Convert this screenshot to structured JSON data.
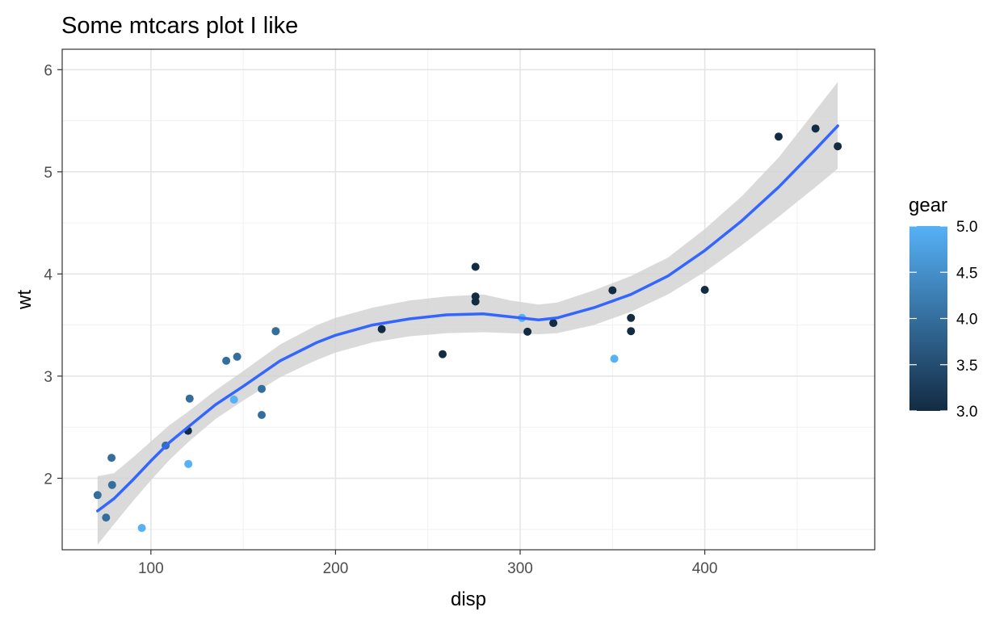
{
  "chart_data": {
    "type": "scatter",
    "title": "Some mtcars plot I like",
    "xlabel": "disp",
    "ylabel": "wt",
    "xlim": [
      51.95,
      492.05
    ],
    "ylim": [
      1.3,
      6.2
    ],
    "x_ticks": [
      100,
      200,
      300,
      400
    ],
    "y_ticks": [
      2,
      3,
      4,
      5,
      6
    ],
    "grid": true,
    "colors": {
      "low": "#132B43",
      "high": "#56B1F7",
      "smooth_line": "#3366FF",
      "ribbon": "#d3d3d3"
    },
    "legend": {
      "title": "gear",
      "position": "right",
      "range": [
        3,
        5
      ],
      "labels": [
        "5.0",
        "4.5",
        "4.0",
        "3.5",
        "3.0"
      ],
      "label_values": [
        5,
        4.5,
        4,
        3.5,
        3
      ]
    },
    "points": [
      {
        "x": 160,
        "y": 2.62,
        "gear": 4
      },
      {
        "x": 160,
        "y": 2.875,
        "gear": 4
      },
      {
        "x": 108,
        "y": 2.32,
        "gear": 4
      },
      {
        "x": 258,
        "y": 3.215,
        "gear": 3
      },
      {
        "x": 360,
        "y": 3.44,
        "gear": 3
      },
      {
        "x": 225,
        "y": 3.46,
        "gear": 3
      },
      {
        "x": 360,
        "y": 3.57,
        "gear": 3
      },
      {
        "x": 146.7,
        "y": 3.19,
        "gear": 4
      },
      {
        "x": 140.8,
        "y": 3.15,
        "gear": 4
      },
      {
        "x": 167.6,
        "y": 3.44,
        "gear": 4
      },
      {
        "x": 167.6,
        "y": 3.44,
        "gear": 4
      },
      {
        "x": 275.8,
        "y": 4.07,
        "gear": 3
      },
      {
        "x": 275.8,
        "y": 3.73,
        "gear": 3
      },
      {
        "x": 275.8,
        "y": 3.78,
        "gear": 3
      },
      {
        "x": 472,
        "y": 5.25,
        "gear": 3
      },
      {
        "x": 460,
        "y": 5.424,
        "gear": 3
      },
      {
        "x": 440,
        "y": 5.345,
        "gear": 3
      },
      {
        "x": 78.7,
        "y": 2.2,
        "gear": 4
      },
      {
        "x": 75.7,
        "y": 1.615,
        "gear": 4
      },
      {
        "x": 71.1,
        "y": 1.835,
        "gear": 4
      },
      {
        "x": 120.1,
        "y": 2.465,
        "gear": 3
      },
      {
        "x": 318,
        "y": 3.52,
        "gear": 3
      },
      {
        "x": 304,
        "y": 3.435,
        "gear": 3
      },
      {
        "x": 350,
        "y": 3.84,
        "gear": 3
      },
      {
        "x": 400,
        "y": 3.845,
        "gear": 3
      },
      {
        "x": 79,
        "y": 1.935,
        "gear": 4
      },
      {
        "x": 120.3,
        "y": 2.14,
        "gear": 5
      },
      {
        "x": 95.1,
        "y": 1.513,
        "gear": 5
      },
      {
        "x": 351,
        "y": 3.17,
        "gear": 5
      },
      {
        "x": 145,
        "y": 2.77,
        "gear": 5
      },
      {
        "x": 301,
        "y": 3.57,
        "gear": 5
      },
      {
        "x": 121,
        "y": 2.78,
        "gear": 4
      }
    ],
    "smooth": [
      {
        "x": 71.1,
        "y": 1.68,
        "lo": 1.35,
        "hi": 2.02
      },
      {
        "x": 80,
        "y": 1.8,
        "lo": 1.55,
        "hi": 2.05
      },
      {
        "x": 90,
        "y": 1.98,
        "lo": 1.77,
        "hi": 2.2
      },
      {
        "x": 100,
        "y": 2.17,
        "lo": 1.98,
        "hi": 2.36
      },
      {
        "x": 110,
        "y": 2.35,
        "lo": 2.18,
        "hi": 2.52
      },
      {
        "x": 120,
        "y": 2.5,
        "lo": 2.35,
        "hi": 2.65
      },
      {
        "x": 135,
        "y": 2.72,
        "lo": 2.58,
        "hi": 2.86
      },
      {
        "x": 150,
        "y": 2.9,
        "lo": 2.76,
        "hi": 3.05
      },
      {
        "x": 170,
        "y": 3.15,
        "lo": 2.99,
        "hi": 3.31
      },
      {
        "x": 190,
        "y": 3.33,
        "lo": 3.16,
        "hi": 3.5
      },
      {
        "x": 200,
        "y": 3.4,
        "lo": 3.23,
        "hi": 3.57
      },
      {
        "x": 220,
        "y": 3.5,
        "lo": 3.33,
        "hi": 3.67
      },
      {
        "x": 240,
        "y": 3.56,
        "lo": 3.39,
        "hi": 3.74
      },
      {
        "x": 260,
        "y": 3.6,
        "lo": 3.42,
        "hi": 3.78
      },
      {
        "x": 280,
        "y": 3.61,
        "lo": 3.43,
        "hi": 3.8
      },
      {
        "x": 295,
        "y": 3.58,
        "lo": 3.42,
        "hi": 3.74
      },
      {
        "x": 310,
        "y": 3.55,
        "lo": 3.41,
        "hi": 3.7
      },
      {
        "x": 320,
        "y": 3.57,
        "lo": 3.42,
        "hi": 3.72
      },
      {
        "x": 340,
        "y": 3.67,
        "lo": 3.5,
        "hi": 3.84
      },
      {
        "x": 360,
        "y": 3.8,
        "lo": 3.63,
        "hi": 3.98
      },
      {
        "x": 380,
        "y": 3.98,
        "lo": 3.8,
        "hi": 4.16
      },
      {
        "x": 400,
        "y": 4.23,
        "lo": 4.02,
        "hi": 4.44
      },
      {
        "x": 420,
        "y": 4.52,
        "lo": 4.28,
        "hi": 4.76
      },
      {
        "x": 440,
        "y": 4.85,
        "lo": 4.56,
        "hi": 5.14
      },
      {
        "x": 460,
        "y": 5.22,
        "lo": 4.85,
        "hi": 5.6
      },
      {
        "x": 472,
        "y": 5.45,
        "lo": 5.03,
        "hi": 5.88
      }
    ]
  }
}
